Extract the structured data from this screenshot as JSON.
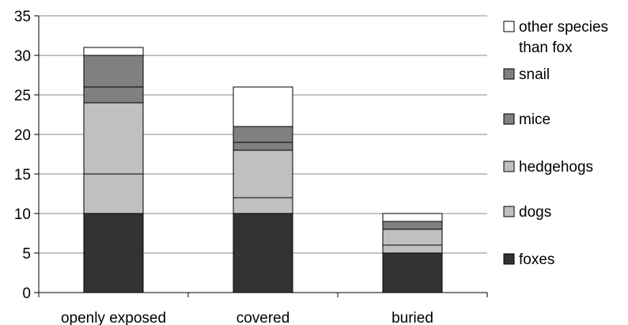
{
  "chart_data": {
    "type": "bar",
    "stacked": true,
    "title": "",
    "xlabel": "",
    "ylabel": "",
    "categories": [
      "openly exposed",
      "covered",
      "buried"
    ],
    "ylim": [
      0,
      35
    ],
    "yticks": [
      0,
      5,
      10,
      15,
      20,
      25,
      30,
      35
    ],
    "grid": true,
    "legend_position": "right",
    "series": [
      {
        "name": "foxes",
        "values": [
          10,
          10,
          5
        ],
        "color": "#333333"
      },
      {
        "name": "dogs",
        "values": [
          5,
          2,
          1
        ],
        "color": "#c0c0c0"
      },
      {
        "name": "hedgehogs",
        "values": [
          9,
          6,
          2
        ],
        "color": "#c0c0c0"
      },
      {
        "name": "mice",
        "values": [
          2,
          1,
          0
        ],
        "color": "#808080"
      },
      {
        "name": "snail",
        "values": [
          4,
          2,
          1
        ],
        "color": "#808080"
      },
      {
        "name": "other species than fox",
        "values": [
          1,
          5,
          1
        ],
        "color": "#ffffff"
      }
    ],
    "legend_lines": [
      [
        "other species",
        "than fox"
      ],
      [
        "snail"
      ],
      [
        "mice"
      ],
      [
        "hedgehogs"
      ],
      [
        "dogs"
      ],
      [
        "foxes"
      ]
    ]
  }
}
